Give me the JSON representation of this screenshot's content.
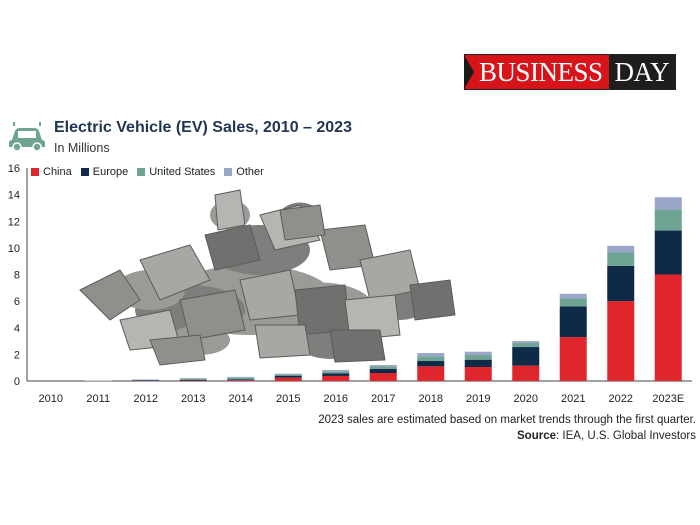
{
  "header": {
    "logo_part1": "BUSINESS",
    "logo_part2": "DAY"
  },
  "icons": {
    "title_icon": "car-icon",
    "photo": "lithium-rocks-photo"
  },
  "footer": {
    "note": "2023 sales are estimated based on market trends through the first quarter.",
    "source_label": "Source",
    "source_text": ": IEA, U.S. Global Investors"
  },
  "chart_data": {
    "type": "bar",
    "stacked": true,
    "title": "Electric Vehicle (EV) Sales, 2010 – 2023",
    "subtitle": "In Millions",
    "categories": [
      "2010",
      "2011",
      "2012",
      "2013",
      "2014",
      "2015",
      "2016",
      "2017",
      "2018",
      "2019",
      "2020",
      "2021",
      "2022",
      "2023E"
    ],
    "series": [
      {
        "name": "China",
        "color": "#e0262d",
        "values": [
          0.0,
          0.01,
          0.02,
          0.03,
          0.06,
          0.25,
          0.38,
          0.6,
          1.1,
          1.05,
          1.15,
          3.3,
          6.0,
          8.0
        ]
      },
      {
        "name": "Europe",
        "color": "#0e2a47",
        "values": [
          0.0,
          0.01,
          0.02,
          0.05,
          0.07,
          0.15,
          0.2,
          0.3,
          0.4,
          0.55,
          1.4,
          2.3,
          2.65,
          3.3
        ]
      },
      {
        "name": "United States",
        "color": "#6fa394",
        "values": [
          0.0,
          0.01,
          0.05,
          0.1,
          0.12,
          0.1,
          0.15,
          0.2,
          0.35,
          0.35,
          0.3,
          0.6,
          1.0,
          1.6
        ]
      },
      {
        "name": "Other",
        "color": "#9aa7c8",
        "values": [
          0.0,
          0.01,
          0.02,
          0.04,
          0.06,
          0.05,
          0.1,
          0.1,
          0.25,
          0.25,
          0.15,
          0.35,
          0.5,
          0.9
        ]
      }
    ],
    "ylim": [
      0,
      16
    ],
    "yticks": [
      0,
      2,
      4,
      6,
      8,
      10,
      12,
      14,
      16
    ],
    "legend_position": "top-left",
    "grid": false
  }
}
